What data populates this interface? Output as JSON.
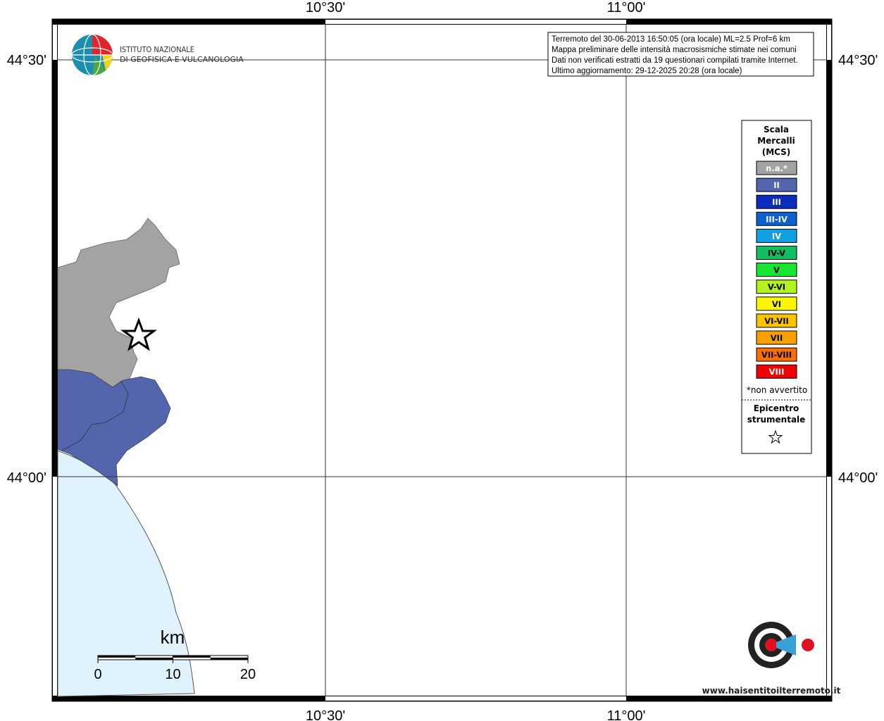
{
  "grid_labels": {
    "lon": [
      "10°30'",
      "11°00'"
    ],
    "lat": [
      "44°30'",
      "44°00'"
    ]
  },
  "logo": {
    "line1": "ISTITUTO NAZIONALE",
    "line2": "DI GEOFISICA E VULCANOLOGIA"
  },
  "info": [
    "Terremoto del 30-06-2013 16:50:05 (ora locale) ML=2.5 Prof=6 km",
    "Mappa preliminare delle intensità macrosismiche stimate nei comuni",
    "Dati non verificati estratti da 19 questionari compilati tramite Internet.",
    "Ultimo aggiornamento: 29-12-2025 20:28 (ora locale)"
  ],
  "legend": {
    "title": [
      "Scala",
      "Mercalli",
      "(MCS)"
    ],
    "items": [
      {
        "label": "n.a.*",
        "color": "#a3a3a3",
        "text_color": "#ffffff"
      },
      {
        "label": "II",
        "color": "#5366ad",
        "text_color": "#ffffff"
      },
      {
        "label": "III",
        "color": "#0c2dbb",
        "text_color": "#ffffff"
      },
      {
        "label": "III-IV",
        "color": "#0d61cf",
        "text_color": "#ffffff"
      },
      {
        "label": "IV",
        "color": "#12a0e3",
        "text_color": "#ffffff"
      },
      {
        "label": "IV-V",
        "color": "#12be62",
        "text_color": "#000000"
      },
      {
        "label": "V",
        "color": "#14e632",
        "text_color": "#000000"
      },
      {
        "label": "V-VI",
        "color": "#b2f21e",
        "text_color": "#000000"
      },
      {
        "label": "VI",
        "color": "#f8f600",
        "text_color": "#000000"
      },
      {
        "label": "VI-VII",
        "color": "#f8c400",
        "text_color": "#000000"
      },
      {
        "label": "VII",
        "color": "#f8a000",
        "text_color": "#000000"
      },
      {
        "label": "VII-VIII",
        "color": "#f86e00",
        "text_color": "#000000"
      },
      {
        "label": "VIII",
        "color": "#f00000",
        "text_color": "#ffffff"
      }
    ],
    "note": "*non avvertito",
    "epicentre": [
      "Epicentro",
      "strumentale"
    ]
  },
  "scale": {
    "unit": "km",
    "ticks": [
      0,
      10,
      20
    ]
  },
  "site_logo": "www.haisentitoilterremoto.it"
}
